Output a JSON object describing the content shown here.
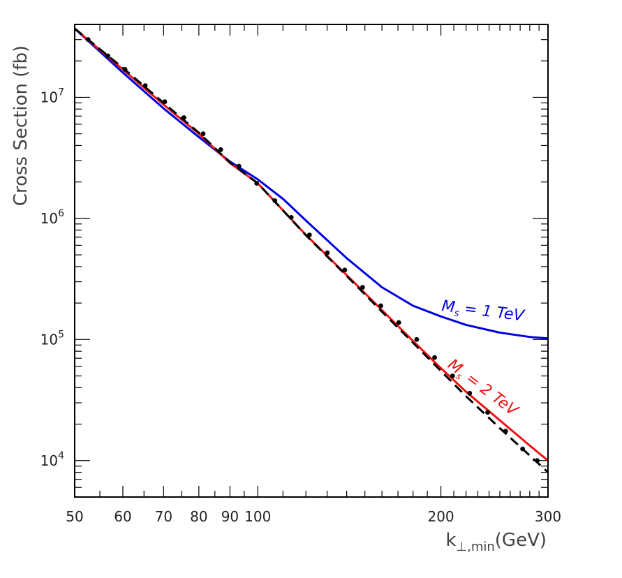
{
  "chart_data": {
    "type": "line",
    "title": "",
    "xlabel": "k⊥,min(GeV)",
    "ylabel": "Cross Section (fb)",
    "xscale": "log",
    "yscale": "log",
    "xlim": [
      50,
      300
    ],
    "ylim": [
      5000,
      40000000
    ],
    "x_ticks": [
      50,
      60,
      70,
      80,
      90,
      100,
      200,
      300
    ],
    "x_tick_labels": [
      "50",
      "60",
      "70",
      "80",
      "90",
      "100",
      "200",
      "300"
    ],
    "y_ticks": [
      10000,
      100000,
      1000000,
      10000000
    ],
    "y_tick_labels": [
      {
        "base": "10",
        "exp": "4"
      },
      {
        "base": "10",
        "exp": "5"
      },
      {
        "base": "10",
        "exp": "6"
      },
      {
        "base": "10",
        "exp": "7"
      }
    ],
    "grid": false,
    "series": [
      {
        "name": "",
        "style": "solid",
        "color": "#0000e0",
        "x": [
          50,
          60,
          70,
          80,
          90,
          100,
          110,
          120,
          140,
          160,
          180,
          200,
          220,
          250,
          280,
          300
        ],
        "y": [
          37000000,
          16000000,
          8100000,
          4700000,
          2950000,
          2100000,
          1450000,
          960000,
          470000,
          270000,
          190000,
          155000,
          132000,
          114000,
          105000,
          102000
        ]
      },
      {
        "name": "",
        "style": "solid",
        "color": "#ee1111",
        "x": [
          50,
          60,
          70,
          80,
          90,
          100,
          120,
          140,
          160,
          180,
          200,
          220,
          250,
          280,
          300
        ],
        "y": [
          37000000,
          17000000,
          8700000,
          5000000,
          2870000,
          1950000,
          730000,
          340000,
          175000,
          97000,
          58000,
          37000,
          21500,
          13300,
          10000
        ]
      },
      {
        "name": "",
        "style": "dashed",
        "color": "#000000",
        "x": [
          50,
          60,
          70,
          80,
          90,
          100,
          120,
          140,
          160,
          180,
          200,
          220,
          250,
          280,
          300
        ],
        "y": [
          37000000,
          17500000,
          9000000,
          5100000,
          2900000,
          1950000,
          725000,
          335000,
          170000,
          94000,
          55000,
          34000,
          18500,
          11000,
          8000
        ]
      },
      {
        "name": "",
        "style": "dots",
        "color": "#000000",
        "x": [
          52.6,
          56.7,
          60.5,
          65.3,
          70.3,
          75.6,
          81.3,
          86.9,
          93.1,
          99.6,
          106.7,
          113.5,
          121.6,
          130.1,
          139.0,
          148.7,
          159.3,
          170.5,
          182.5,
          195.3,
          209.0,
          223.0,
          238.7,
          255.5,
          272.5,
          288.0
        ],
        "y": [
          30000000,
          22000000,
          17000000,
          12500000,
          9200000,
          6800000,
          5000000,
          3700000,
          2700000,
          1950000,
          1400000,
          1020000,
          730000,
          520000,
          375000,
          270000,
          190000,
          138000,
          100000,
          71000,
          50000,
          36000,
          25000,
          17500,
          12500,
          10000
        ]
      }
    ],
    "annotations": [
      {
        "text": "M",
        "sub": "s",
        "rest": " = 1 TeV",
        "color": "#0000e0"
      },
      {
        "text": "M",
        "sub": "s",
        "rest": " = 2 TeV",
        "color": "#ee1111"
      }
    ]
  }
}
